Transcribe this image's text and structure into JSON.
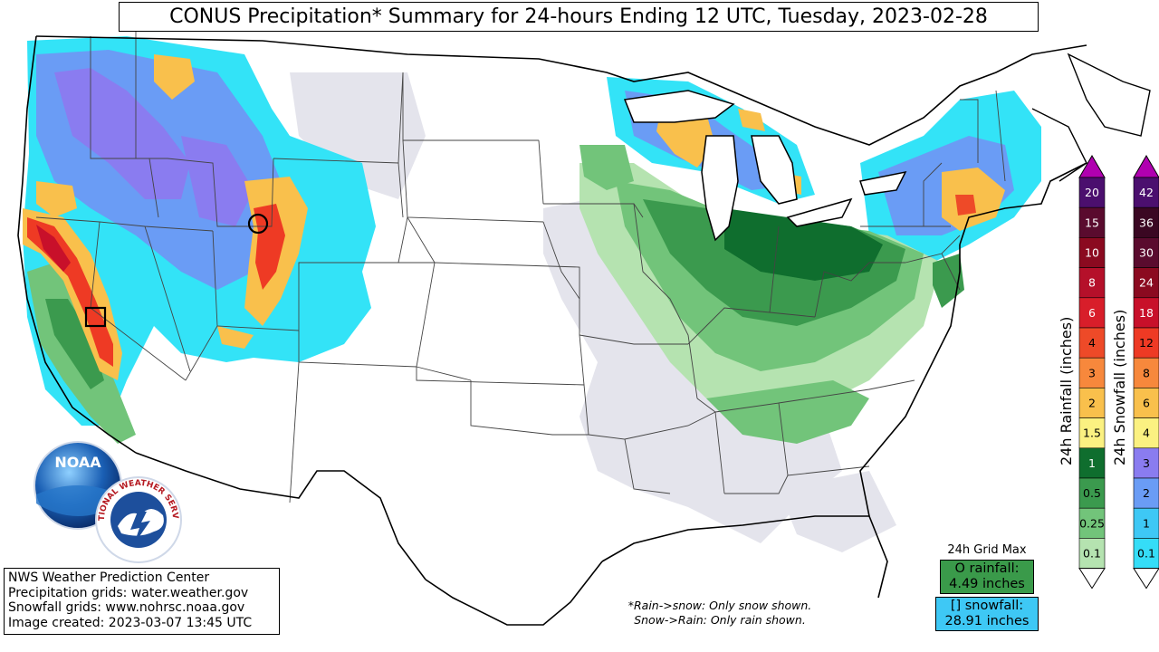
{
  "title": "CONUS Precipitation* Summary for 24-hours Ending 12 UTC, Tuesday, 2023-02-28",
  "credits": [
    "NWS Weather Prediction Center",
    "Precipitation grids: water.weather.gov",
    "Snowfall grids: www.nohrsc.noaa.gov",
    "Image created: 2023-03-07 13:45 UTC"
  ],
  "footnote": [
    "*Rain->snow: Only snow shown.",
    "Snow->Rain: Only rain shown."
  ],
  "grid_max": {
    "title": "24h Grid Max",
    "rain_label": "O rainfall:",
    "rain_value": "4.49 inches",
    "snow_label": "[] snowfall:",
    "snow_value": "28.91 inches"
  },
  "logos": {
    "noaa": "NOAA",
    "nws": "NATIONAL WEATHER SERVICE"
  },
  "rain_legend": {
    "label": "24h Rainfall (inches)",
    "levels": [
      "20",
      "15",
      "10",
      "8",
      "6",
      "4",
      "3",
      "2",
      "1.5",
      "1",
      "0.5",
      "0.25",
      "0.1"
    ],
    "colors": [
      "#4b0f6e",
      "#5a0b2e",
      "#8b0a20",
      "#b5102a",
      "#d81e2a",
      "#ee4a28",
      "#f7883c",
      "#f9c04c",
      "#fbf181",
      "#0f6e2e",
      "#3b9a4e",
      "#72c47a",
      "#b5e3b0"
    ]
  },
  "snow_legend": {
    "label": "24h Snowfall (inches)",
    "levels": [
      "42",
      "36",
      "30",
      "24",
      "18",
      "12",
      "8",
      "6",
      "4",
      "3",
      "2",
      "1",
      "0.1"
    ],
    "colors": [
      "#4b0f6e",
      "#3a0722",
      "#5a0b2e",
      "#8b0a20",
      "#c8102a",
      "#ee3a24",
      "#f7883c",
      "#f9c04c",
      "#fbf181",
      "#8a7cf0",
      "#6a9cf5",
      "#3ec8f5",
      "#35ddf7"
    ]
  },
  "arrow_colors": {
    "top": "#b000b0",
    "bottom": "#ffffff"
  },
  "colors": {
    "light_gray": "#e4e4ec",
    "light_cyan": "#33e3f7",
    "mid_blue": "#6a9cf5",
    "violet": "#8a7cf0"
  }
}
